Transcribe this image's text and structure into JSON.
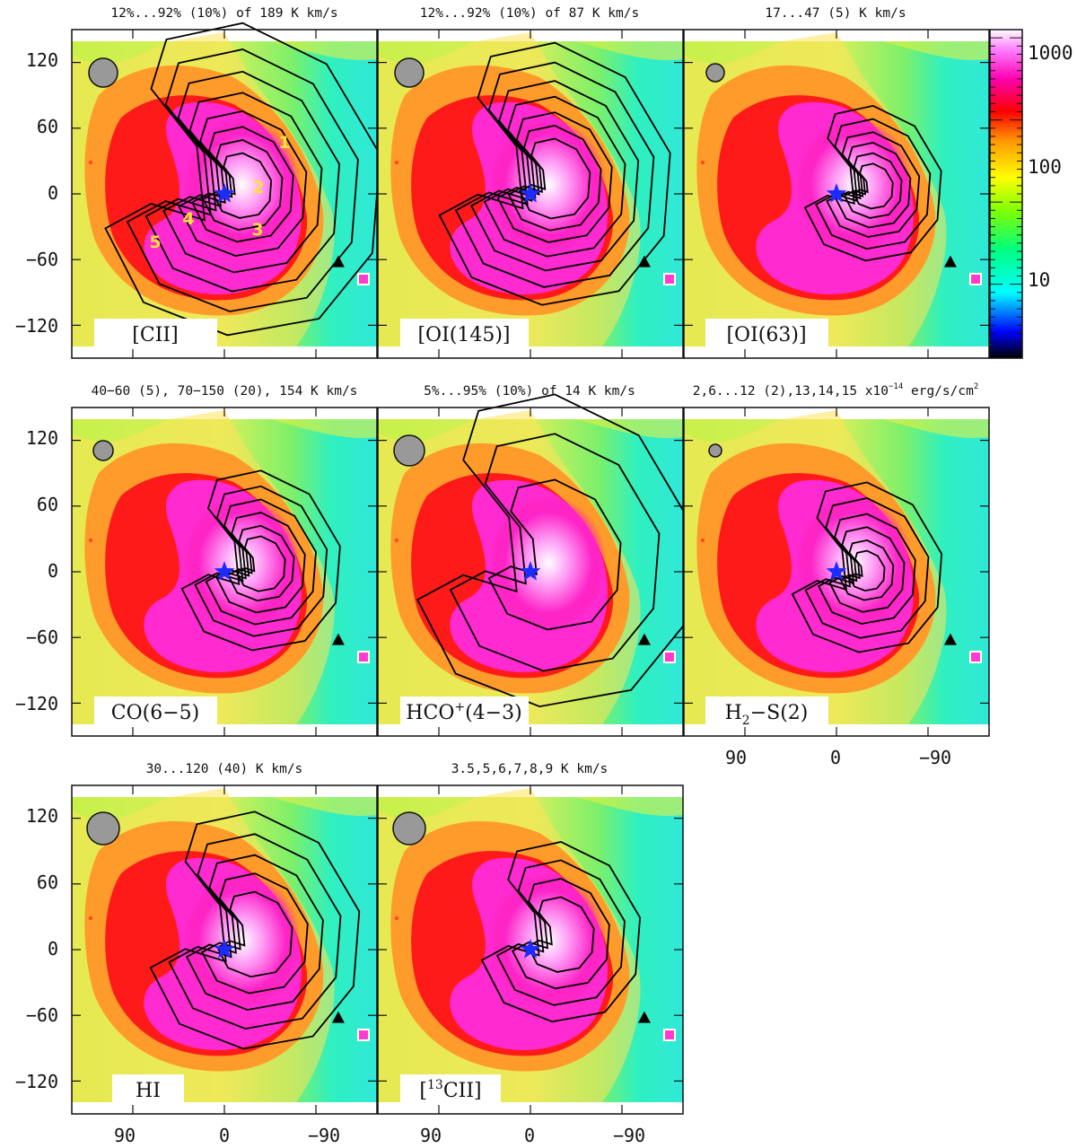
{
  "chart_data": {
    "type": "heatmap",
    "layout": "3x3 grid of map panels",
    "background_colormap": {
      "scale": "log",
      "tick_labels": [
        "1000",
        "100",
        "10"
      ],
      "colors": [
        "#000000",
        "#0000ff",
        "#00ffff",
        "#00ff7f",
        "#80ff00",
        "#ffff00",
        "#ff9900",
        "#ff0000",
        "#ff00b0",
        "#ff80ff",
        "#ffffff"
      ]
    },
    "axes": {
      "x_range": [
        150,
        -150
      ],
      "y_range": [
        -150,
        150
      ],
      "x_tick_labels": [
        "90",
        "0",
        "−90"
      ],
      "y_tick_labels": [
        "120",
        "60",
        "0",
        "−60",
        "−120"
      ]
    },
    "panels": [
      {
        "label": "[CII]",
        "title": "12%...92% (10%) of 189 K km/s",
        "annotations": [
          "1",
          "2",
          "3",
          "4",
          "5"
        ]
      },
      {
        "label": "[OI(145)]",
        "title": "12%...92% (10%) of 87 K km/s"
      },
      {
        "label": "[OI(63)]",
        "title": "17...47 (5) K km/s"
      },
      {
        "label": "CO(6−5)",
        "title": "40−60 (5), 70−150 (20), 154 K km/s"
      },
      {
        "label_main": "HCO",
        "label_sup": "+",
        "label_rest": "(4−3)",
        "title": "5%...95% (10%) of 14 K km/s"
      },
      {
        "label_main": "H",
        "label_sub": "2",
        "label_rest": "−S(2)",
        "title_main": "2,6...12 (2),13,14,15 x10",
        "title_sup": "−14",
        "title_rest": " erg/s/cm",
        "title_sup2": "2"
      },
      {
        "label": "HI",
        "title": "30...120 (40) K km/s"
      },
      {
        "label_pre": "[",
        "label_sup": "13",
        "label_rest": "CII]",
        "title": "3.5,5,6,7,8,9 K km/s"
      }
    ],
    "markers": {
      "star_position": [
        0,
        0
      ],
      "triangle_position": [
        -112,
        -62
      ]
    }
  }
}
